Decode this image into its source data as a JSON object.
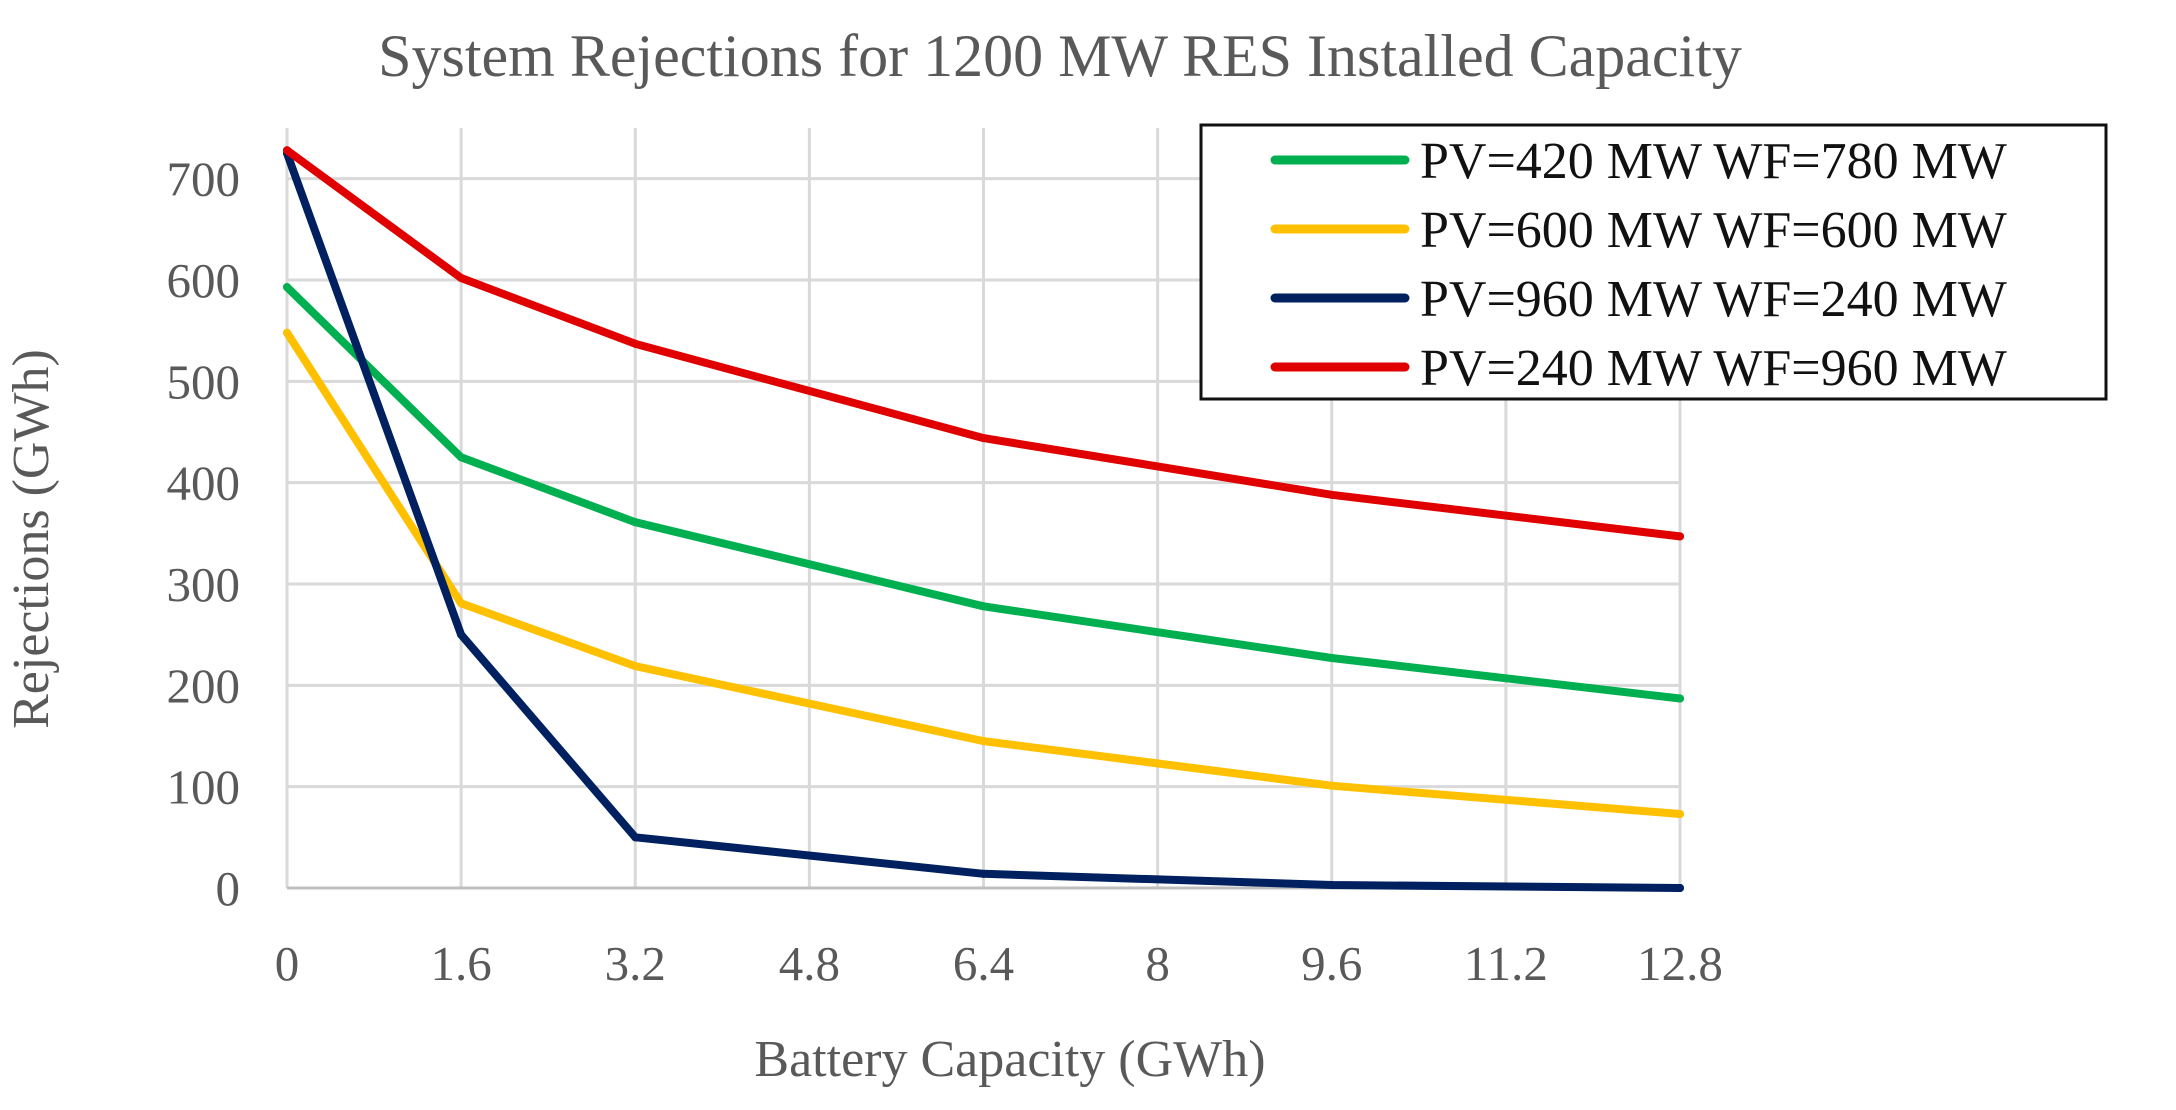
{
  "chart_data": {
    "type": "line",
    "title": "System Rejections for 1200 MW RES Installed Capacity",
    "xlabel": "Battery Capacity (GWh)",
    "ylabel": "Rejections (GWh)",
    "x": [
      0,
      1.6,
      3.2,
      4.8,
      6.4,
      8,
      9.6,
      11.2,
      12.8
    ],
    "x_tick_labels": [
      "0",
      "1.6",
      "3.2",
      "4.8",
      "6.4",
      "8",
      "9.6",
      "11.2",
      "12.8"
    ],
    "y_ticks": [
      0,
      100,
      200,
      300,
      400,
      500,
      600,
      700
    ],
    "ylim": [
      0,
      750
    ],
    "xlim": [
      0,
      12.8
    ],
    "grid": true,
    "legend_position": "top-right",
    "series": [
      {
        "name": "PV=420 MW WF=780 MW",
        "color": "#00b050",
        "x": [
          0,
          1.6,
          3.2,
          6.4,
          9.6,
          12.8
        ],
        "values": [
          593,
          425,
          361,
          278,
          227,
          187
        ]
      },
      {
        "name": "PV=600 MW WF=600 MW",
        "color": "#ffc000",
        "x": [
          0,
          1.6,
          3.2,
          6.4,
          9.6,
          12.8
        ],
        "values": [
          548,
          281,
          219,
          145,
          101,
          73
        ]
      },
      {
        "name": "PV=960 MW WF=240 MW",
        "color": "#002060",
        "x": [
          0,
          1.6,
          3.2,
          6.4,
          9.6,
          12.8
        ],
        "values": [
          725,
          250,
          50,
          14,
          3,
          0
        ]
      },
      {
        "name": "PV=240 MW WF=960 MW",
        "color": "#e00000",
        "x": [
          0,
          1.6,
          3.2,
          6.4,
          9.6,
          12.8
        ],
        "values": [
          728,
          602,
          537,
          444,
          388,
          347
        ]
      }
    ]
  }
}
